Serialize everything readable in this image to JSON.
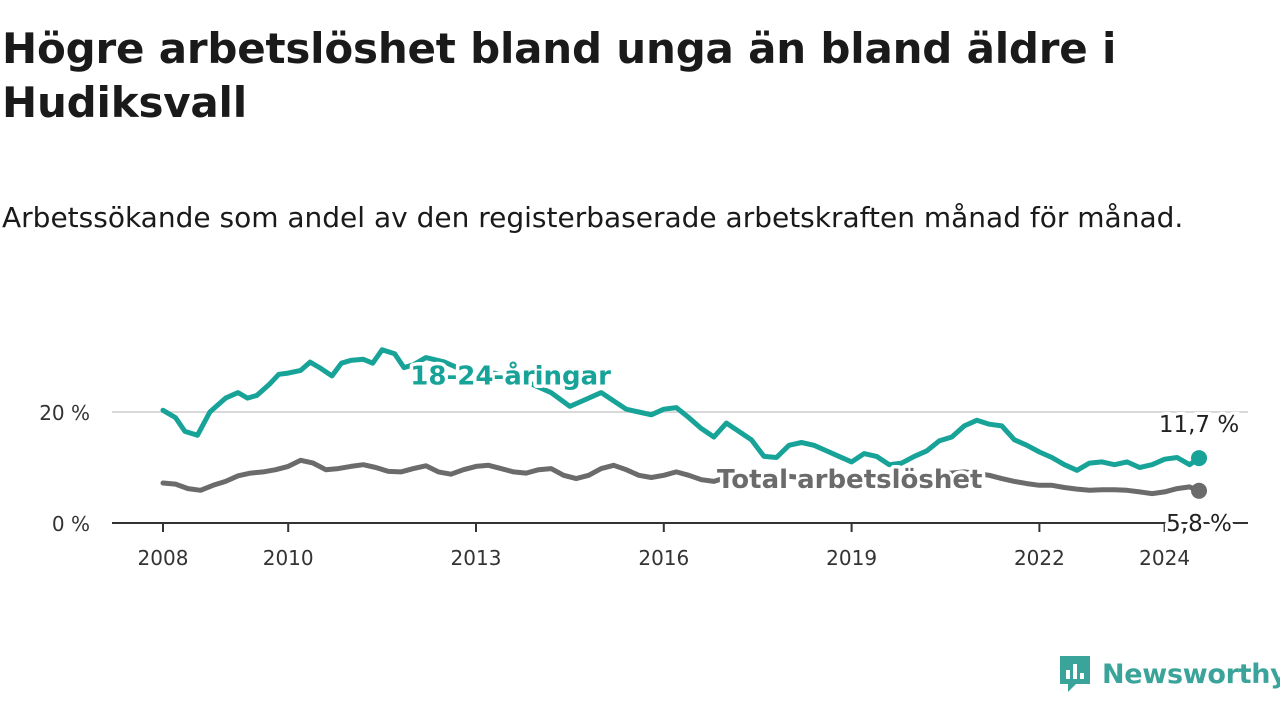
{
  "header": {
    "title": "Högre arbetslöshet bland unga än bland äldre i Hudiksvall",
    "subtitle": "Arbetssökande som andel av den registerbaserade arbetskraften månad för månad."
  },
  "brand": {
    "name": "Newsworthy",
    "icon": "newsworthy-logo-icon",
    "color": "#3aa39a"
  },
  "chart_data": {
    "type": "line",
    "x_unit": "year",
    "xlim": [
      2008,
      2025.3
    ],
    "ylim": [
      0,
      33
    ],
    "y_ticks": [
      0,
      20
    ],
    "y_tick_labels": [
      "0 %",
      "20 %"
    ],
    "x_ticks": [
      2008,
      2010,
      2013,
      2016,
      2019,
      2022,
      2024
    ],
    "x_tick_labels": [
      "2008",
      "2010",
      "2013",
      "2016",
      "2019",
      "2022",
      "2024"
    ],
    "grid": "horizontal",
    "series": [
      {
        "name": "18-24-åringar",
        "color": "#17a398",
        "end_label": "11,7 %",
        "x": [
          2008.0,
          2008.2,
          2008.35,
          2008.55,
          2008.75,
          2008.85,
          2009.0,
          2009.2,
          2009.35,
          2009.5,
          2009.7,
          2009.85,
          2010.0,
          2010.2,
          2010.35,
          2010.5,
          2010.7,
          2010.85,
          2011.0,
          2011.2,
          2011.35,
          2011.5,
          2011.7,
          2011.85,
          2012.0,
          2012.2,
          2012.5,
          2012.8,
          2013.0,
          2013.3,
          2013.6,
          2013.9,
          2014.2,
          2014.5,
          2014.8,
          2015.0,
          2015.2,
          2015.4,
          2015.6,
          2015.8,
          2016.0,
          2016.2,
          2016.4,
          2016.6,
          2016.8,
          2017.0,
          2017.2,
          2017.4,
          2017.6,
          2017.8,
          2018.0,
          2018.2,
          2018.4,
          2018.6,
          2018.8,
          2019.0,
          2019.2,
          2019.4,
          2019.6,
          2019.8,
          2020.0,
          2020.2,
          2020.4,
          2020.6,
          2020.8,
          2021.0,
          2021.2,
          2021.4,
          2021.6,
          2021.8,
          2022.0,
          2022.2,
          2022.4,
          2022.6,
          2022.8,
          2023.0,
          2023.2,
          2023.4,
          2023.6,
          2023.8,
          2024.0,
          2024.2,
          2024.4,
          2024.55
        ],
        "values": [
          20.3,
          19.0,
          16.5,
          15.8,
          20.0,
          21.0,
          22.5,
          23.5,
          22.5,
          23.0,
          25.0,
          26.8,
          27.0,
          27.5,
          29.0,
          28.0,
          26.5,
          28.8,
          29.3,
          29.5,
          28.8,
          31.2,
          30.5,
          28.0,
          28.5,
          29.8,
          29.0,
          27.5,
          26.5,
          27.0,
          26.0,
          25.0,
          23.5,
          21.0,
          22.5,
          23.5,
          22.0,
          20.5,
          20.0,
          19.5,
          20.5,
          20.8,
          19.0,
          17.0,
          15.5,
          18.0,
          16.5,
          15.0,
          12.0,
          11.8,
          14.0,
          14.5,
          14.0,
          13.0,
          12.0,
          11.0,
          12.5,
          12.0,
          10.5,
          10.8,
          12.0,
          13.0,
          14.8,
          15.5,
          17.5,
          18.5,
          17.8,
          17.5,
          15.0,
          14.0,
          12.8,
          11.8,
          10.5,
          9.5,
          10.8,
          11.0,
          10.5,
          11.0,
          10.0,
          10.5,
          11.5,
          11.8,
          10.5,
          11.7
        ]
      },
      {
        "name": "Total arbetslöshet",
        "color": "#6b6b6b",
        "end_label": "5,8 %",
        "x": [
          2008.0,
          2008.2,
          2008.4,
          2008.6,
          2008.8,
          2009.0,
          2009.2,
          2009.4,
          2009.6,
          2009.8,
          2010.0,
          2010.2,
          2010.4,
          2010.6,
          2010.8,
          2011.0,
          2011.2,
          2011.4,
          2011.6,
          2011.8,
          2012.0,
          2012.2,
          2012.4,
          2012.6,
          2012.8,
          2013.0,
          2013.2,
          2013.4,
          2013.6,
          2013.8,
          2014.0,
          2014.2,
          2014.4,
          2014.6,
          2014.8,
          2015.0,
          2015.2,
          2015.4,
          2015.6,
          2015.8,
          2016.0,
          2016.2,
          2016.4,
          2016.6,
          2016.8,
          2017.0,
          2017.3,
          2017.6,
          2017.9,
          2018.2,
          2018.5,
          2018.8,
          2019.0,
          2019.3,
          2019.6,
          2019.9,
          2020.2,
          2020.5,
          2020.8,
          2021.0,
          2021.2,
          2021.4,
          2021.6,
          2021.8,
          2022.0,
          2022.2,
          2022.4,
          2022.6,
          2022.8,
          2023.0,
          2023.2,
          2023.4,
          2023.6,
          2023.8,
          2024.0,
          2024.2,
          2024.4,
          2024.55
        ],
        "values": [
          7.2,
          7.0,
          6.2,
          5.9,
          6.8,
          7.5,
          8.5,
          9.0,
          9.2,
          9.6,
          10.2,
          11.3,
          10.8,
          9.6,
          9.8,
          10.2,
          10.5,
          10.0,
          9.3,
          9.2,
          9.8,
          10.3,
          9.2,
          8.8,
          9.6,
          10.2,
          10.4,
          9.8,
          9.2,
          9.0,
          9.6,
          9.8,
          8.6,
          8.0,
          8.6,
          9.8,
          10.4,
          9.6,
          8.6,
          8.2,
          8.6,
          9.2,
          8.6,
          7.8,
          7.5,
          8.2,
          8.0,
          8.4,
          8.5,
          8.2,
          8.0,
          8.3,
          8.6,
          8.9,
          8.6,
          8.0,
          8.6,
          8.9,
          9.2,
          8.9,
          8.6,
          8.0,
          7.5,
          7.1,
          6.8,
          6.8,
          6.4,
          6.1,
          5.9,
          6.0,
          6.0,
          5.9,
          5.6,
          5.3,
          5.6,
          6.2,
          6.5,
          5.8
        ]
      }
    ]
  }
}
